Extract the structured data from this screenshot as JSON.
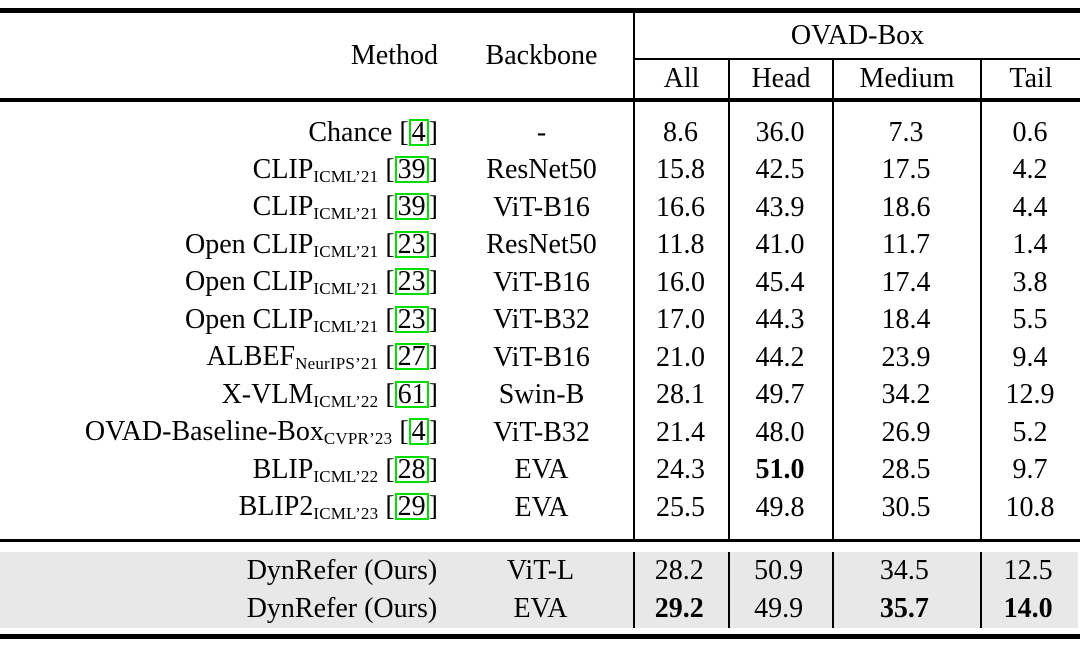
{
  "table": {
    "header": {
      "method": "Method",
      "backbone": "Backbone",
      "group": "OVAD-Box",
      "subcols": [
        "All",
        "Head",
        "Medium",
        "Tail"
      ]
    },
    "rows": [
      {
        "method": "Chance",
        "venue": "",
        "cite": "4",
        "backbone": "-",
        "values": [
          "8.6",
          "36.0",
          "7.3",
          "0.6"
        ],
        "bold": []
      },
      {
        "method": "CLIP",
        "venue": "ICML’21",
        "cite": "39",
        "backbone": "ResNet50",
        "values": [
          "15.8",
          "42.5",
          "17.5",
          "4.2"
        ],
        "bold": []
      },
      {
        "method": "CLIP",
        "venue": "ICML’21",
        "cite": "39",
        "backbone": "ViT-B16",
        "values": [
          "16.6",
          "43.9",
          "18.6",
          "4.4"
        ],
        "bold": []
      },
      {
        "method": "Open CLIP",
        "venue": "ICML’21",
        "cite": "23",
        "backbone": "ResNet50",
        "values": [
          "11.8",
          "41.0",
          "11.7",
          "1.4"
        ],
        "bold": []
      },
      {
        "method": "Open CLIP",
        "venue": "ICML’21",
        "cite": "23",
        "backbone": "ViT-B16",
        "values": [
          "16.0",
          "45.4",
          "17.4",
          "3.8"
        ],
        "bold": []
      },
      {
        "method": "Open CLIP",
        "venue": "ICML’21",
        "cite": "23",
        "backbone": "ViT-B32",
        "values": [
          "17.0",
          "44.3",
          "18.4",
          "5.5"
        ],
        "bold": []
      },
      {
        "method": "ALBEF",
        "venue": "NeurIPS’21",
        "cite": "27",
        "backbone": "ViT-B16",
        "values": [
          "21.0",
          "44.2",
          "23.9",
          "9.4"
        ],
        "bold": []
      },
      {
        "method": "X-VLM",
        "venue": "ICML’22",
        "cite": "61",
        "backbone": "Swin-B",
        "values": [
          "28.1",
          "49.7",
          "34.2",
          "12.9"
        ],
        "bold": []
      },
      {
        "method": "OVAD-Baseline-Box",
        "venue": "CVPR’23",
        "cite": "4",
        "backbone": "ViT-B32",
        "values": [
          "21.4",
          "48.0",
          "26.9",
          "5.2"
        ],
        "bold": []
      },
      {
        "method": "BLIP",
        "venue": "ICML’22",
        "cite": "28",
        "backbone": "EVA",
        "values": [
          "24.3",
          "51.0",
          "28.5",
          "9.7"
        ],
        "bold": [
          1
        ]
      },
      {
        "method": "BLIP2",
        "venue": "ICML’23",
        "cite": "29",
        "backbone": "EVA",
        "values": [
          "25.5",
          "49.8",
          "30.5",
          "10.8"
        ],
        "bold": []
      }
    ],
    "ours_rows": [
      {
        "method": "DynRefer (Ours)",
        "venue": "",
        "cite": "",
        "backbone": "ViT-L",
        "values": [
          "28.2",
          "50.9",
          "34.5",
          "12.5"
        ],
        "bold": []
      },
      {
        "method": "DynRefer (Ours)",
        "venue": "",
        "cite": "",
        "backbone": "EVA",
        "values": [
          "29.2",
          "49.9",
          "35.7",
          "14.0"
        ],
        "bold": [
          0,
          2,
          3
        ]
      }
    ]
  },
  "colors": {
    "citation_box_green": "#00e000",
    "ours_row_background": "#e8e8e8",
    "rule_black": "#000000"
  }
}
